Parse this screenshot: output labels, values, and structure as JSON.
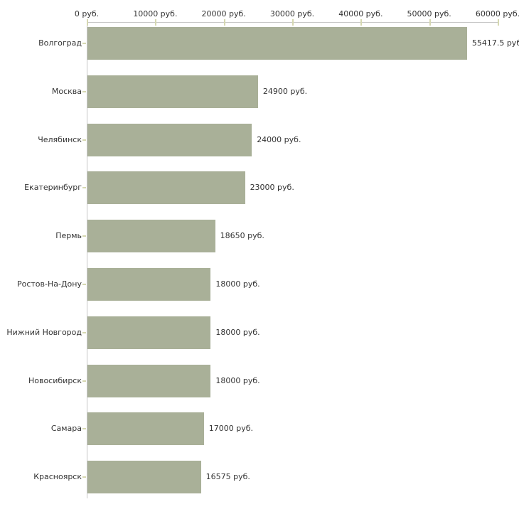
{
  "chart_data": {
    "type": "bar",
    "orientation": "horizontal",
    "unit": "руб.",
    "xlim": [
      0,
      60000
    ],
    "grid": false,
    "legend": false,
    "categories": [
      "Волгоград",
      "Москва",
      "Челябинск",
      "Екатеринбург",
      "Пермь",
      "Ростов-На-Дону",
      "Нижний Новгород",
      "Новосибирск",
      "Самара",
      "Красноярск"
    ],
    "values": [
      55417.5,
      24900,
      24000,
      23000,
      18650,
      18000,
      18000,
      18000,
      17000,
      16575
    ],
    "value_labels": [
      "55417.5 руб",
      "24900 руб.",
      "24000 руб.",
      "23000 руб.",
      "18650 руб.",
      "18000 руб.",
      "18000 руб.",
      "18000 руб.",
      "17000 руб.",
      "16575 руб."
    ],
    "x_ticks": [
      {
        "value": 0,
        "label": "0 руб."
      },
      {
        "value": 10000,
        "label": "10000 руб."
      },
      {
        "value": 20000,
        "label": "20000 руб."
      },
      {
        "value": 30000,
        "label": "30000 руб."
      },
      {
        "value": 40000,
        "label": "40000 руб."
      },
      {
        "value": 50000,
        "label": "50000 руб."
      },
      {
        "value": 60000,
        "label": "60000 руб."
      }
    ],
    "colors": {
      "bar": "#a9b098",
      "axis": "#c6c6c6",
      "tick": "#d6d8b1",
      "text": "#333333",
      "background": "#ffffff"
    }
  }
}
